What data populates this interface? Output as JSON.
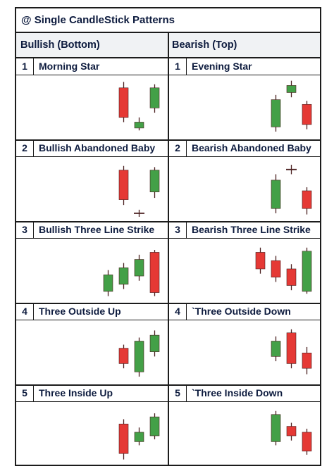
{
  "title": "@ Single CandleStick Patterns",
  "columns": {
    "bullish": "Bullish (Bottom)",
    "bearish": "Bearish (Top)"
  },
  "colors": {
    "bull": "#43a047",
    "bear": "#e53935",
    "wick": "#4a1f1f",
    "border": "#1c1c1c"
  },
  "rows": [
    {
      "left": {
        "num": "1",
        "name": "Morning Star",
        "candles": [
          {
            "dir": "bear",
            "o": 86,
            "c": 36,
            "h": 96,
            "l": 28
          },
          {
            "dir": "bull",
            "o": 18,
            "c": 28,
            "h": 36,
            "l": 14
          },
          {
            "dir": "bull",
            "o": 52,
            "c": 86,
            "h": 92,
            "l": 44
          }
        ]
      },
      "right": {
        "num": "1",
        "name": "Evening Star",
        "candles": [
          {
            "dir": "bull",
            "o": 20,
            "c": 66,
            "h": 74,
            "l": 12
          },
          {
            "dir": "bull",
            "o": 78,
            "c": 90,
            "h": 98,
            "l": 70
          },
          {
            "dir": "bear",
            "o": 58,
            "c": 24,
            "h": 64,
            "l": 16
          }
        ]
      }
    },
    {
      "left": {
        "num": "2",
        "name": "Bullish Abandoned Baby",
        "candles": [
          {
            "dir": "bear",
            "o": 85,
            "c": 35,
            "h": 92,
            "l": 26
          },
          {
            "dir": "doji",
            "o": 12,
            "c": 12,
            "h": 18,
            "l": 6
          },
          {
            "dir": "bull",
            "o": 48,
            "c": 85,
            "h": 90,
            "l": 38
          }
        ]
      },
      "right": {
        "num": "2",
        "name": "Bearish Abandoned Baby",
        "candles": [
          {
            "dir": "bull",
            "o": 20,
            "c": 68,
            "h": 78,
            "l": 12
          },
          {
            "dir": "doji",
            "o": 86,
            "c": 86,
            "h": 94,
            "l": 78
          },
          {
            "dir": "bear",
            "o": 50,
            "c": 20,
            "h": 56,
            "l": 10
          }
        ]
      }
    },
    {
      "left": {
        "num": "3",
        "name": "Bullish Three Line Strike",
        "candles": [
          {
            "dir": "bull",
            "o": 18,
            "c": 46,
            "h": 54,
            "l": 10
          },
          {
            "dir": "bull",
            "o": 30,
            "c": 58,
            "h": 66,
            "l": 22
          },
          {
            "dir": "bull",
            "o": 44,
            "c": 72,
            "h": 80,
            "l": 36
          },
          {
            "dir": "bear",
            "o": 84,
            "c": 16,
            "h": 88,
            "l": 10
          }
        ]
      },
      "right": {
        "num": "3",
        "name": "Bearish Three Line Strike",
        "candles": [
          {
            "dir": "bear",
            "o": 84,
            "c": 56,
            "h": 92,
            "l": 48
          },
          {
            "dir": "bear",
            "o": 70,
            "c": 42,
            "h": 78,
            "l": 34
          },
          {
            "dir": "bear",
            "o": 56,
            "c": 28,
            "h": 64,
            "l": 20
          },
          {
            "dir": "bull",
            "o": 18,
            "c": 86,
            "h": 92,
            "l": 14
          }
        ]
      }
    },
    {
      "left": {
        "num": "4",
        "name": "Three Outside Up",
        "candles": [
          {
            "dir": "bear",
            "o": 60,
            "c": 34,
            "h": 66,
            "l": 26
          },
          {
            "dir": "bull",
            "o": 20,
            "c": 72,
            "h": 78,
            "l": 12
          },
          {
            "dir": "bull",
            "o": 54,
            "c": 82,
            "h": 90,
            "l": 46
          }
        ]
      },
      "right": {
        "num": "4",
        "name": "`Three Outside Down",
        "candles": [
          {
            "dir": "bull",
            "o": 46,
            "c": 72,
            "h": 80,
            "l": 38
          },
          {
            "dir": "bear",
            "o": 86,
            "c": 34,
            "h": 92,
            "l": 26
          },
          {
            "dir": "bear",
            "o": 52,
            "c": 26,
            "h": 62,
            "l": 16
          }
        ]
      }
    },
    {
      "left": {
        "num": "5",
        "name": "Three Inside Up",
        "candles": [
          {
            "dir": "bear",
            "o": 70,
            "c": 20,
            "h": 78,
            "l": 10
          },
          {
            "dir": "bull",
            "o": 40,
            "c": 56,
            "h": 64,
            "l": 34
          },
          {
            "dir": "bull",
            "o": 50,
            "c": 82,
            "h": 88,
            "l": 44
          }
        ]
      },
      "right": {
        "num": "5",
        "name": "`Three Inside Down",
        "candles": [
          {
            "dir": "bull",
            "o": 40,
            "c": 86,
            "h": 92,
            "l": 34
          },
          {
            "dir": "bear",
            "o": 66,
            "c": 50,
            "h": 72,
            "l": 42
          },
          {
            "dir": "bear",
            "o": 56,
            "c": 24,
            "h": 62,
            "l": 18
          }
        ]
      }
    }
  ]
}
